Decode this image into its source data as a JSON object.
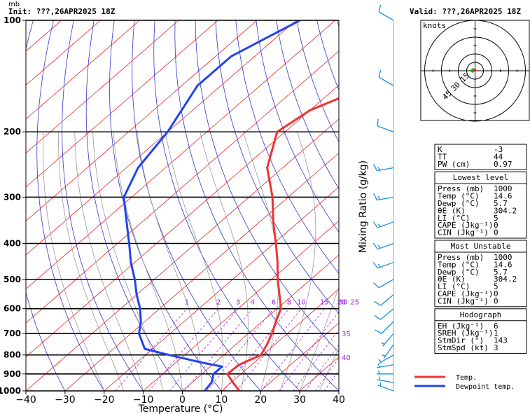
{
  "header": {
    "init": "Init: ???,26APR2025  18Z",
    "valid": "Valid: ???,26APR2025  18Z",
    "pressure_unit": "mb"
  },
  "colors": {
    "temp": "#ee3333",
    "dewpoint": "#2244ee",
    "isotherm": "#ee2222",
    "dry_adiabat": "#3333cc",
    "moist_adiabat": "#999999",
    "mixing_ratio": "#a020f0",
    "wind": "#1a8fe0",
    "hodograph_trace": "#22aa22"
  },
  "chart_data": {
    "type": "skew-t log-p",
    "xlabel": "Temperature (°C)",
    "ylabel_right": "Mixing Ratio (g/kg)",
    "x_ticks": [
      -40,
      -30,
      -20,
      -10,
      0,
      10,
      20,
      30,
      40
    ],
    "x_tick_labels": [
      "−40",
      "−30",
      "−20",
      "−10",
      "0",
      "10",
      "20",
      "30",
      "40"
    ],
    "pressure_levels": [
      1000,
      900,
      800,
      700,
      600,
      500,
      400,
      300,
      200,
      100
    ],
    "pressure_labels": [
      "1000",
      "900",
      "800",
      "700",
      "600",
      "500",
      "400",
      "300",
      "200",
      "100"
    ],
    "ylim_mb": [
      1000,
      100
    ],
    "xlim_c": [
      -40,
      40
    ],
    "mixing_ratio_lines": [
      1,
      2,
      3,
      4,
      6,
      8,
      10,
      15,
      20,
      25,
      30,
      35,
      40
    ],
    "mixing_ratio_labels": [
      "1",
      "2",
      "3",
      "4",
      "6",
      "8",
      "10",
      "15",
      "20",
      "25",
      "30",
      "35",
      "40"
    ],
    "series": [
      {
        "name": "Temp.",
        "points": [
          {
            "p": 1000,
            "t": 14.6
          },
          {
            "p": 950,
            "t": 10.5
          },
          {
            "p": 900,
            "t": 6.5
          },
          {
            "p": 850,
            "t": 6.8
          },
          {
            "p": 800,
            "t": 9.5
          },
          {
            "p": 750,
            "t": 8.0
          },
          {
            "p": 700,
            "t": 6.0
          },
          {
            "p": 650,
            "t": 3.5
          },
          {
            "p": 600,
            "t": 1.0
          },
          {
            "p": 550,
            "t": -3.5
          },
          {
            "p": 500,
            "t": -8.5
          },
          {
            "p": 450,
            "t": -13.5
          },
          {
            "p": 400,
            "t": -19.5
          },
          {
            "p": 350,
            "t": -26.5
          },
          {
            "p": 300,
            "t": -34.0
          },
          {
            "p": 250,
            "t": -44.0
          },
          {
            "p": 200,
            "t": -52.0
          },
          {
            "p": 175,
            "t": -50.0
          },
          {
            "p": 150,
            "t": -42.0
          },
          {
            "p": 125,
            "t": -40.0
          },
          {
            "p": 100,
            "t": -38.0
          }
        ]
      },
      {
        "name": "Dewpoint temp.",
        "points": [
          {
            "p": 1000,
            "t": 5.7
          },
          {
            "p": 950,
            "t": 5.0
          },
          {
            "p": 900,
            "t": 3.0
          },
          {
            "p": 860,
            "t": 3.0
          },
          {
            "p": 840,
            "t": -3.0
          },
          {
            "p": 800,
            "t": -14.0
          },
          {
            "p": 770,
            "t": -22.0
          },
          {
            "p": 700,
            "t": -28.0
          },
          {
            "p": 650,
            "t": -31.0
          },
          {
            "p": 600,
            "t": -35.0
          },
          {
            "p": 550,
            "t": -40.0
          },
          {
            "p": 500,
            "t": -45.0
          },
          {
            "p": 450,
            "t": -51.0
          },
          {
            "p": 400,
            "t": -57.0
          },
          {
            "p": 350,
            "t": -64.0
          },
          {
            "p": 300,
            "t": -72.0
          },
          {
            "p": 250,
            "t": -77.0
          },
          {
            "p": 200,
            "t": -80.0
          },
          {
            "p": 150,
            "t": -86.0
          },
          {
            "p": 125,
            "t": -86.0
          },
          {
            "p": 100,
            "t": -79.0
          }
        ]
      }
    ],
    "wind_barbs": [
      {
        "p": 100,
        "dir": 300,
        "spd": 10
      },
      {
        "p": 150,
        "dir": 300,
        "spd": 10
      },
      {
        "p": 200,
        "dir": 290,
        "spd": 10
      },
      {
        "p": 250,
        "dir": 260,
        "spd": 15
      },
      {
        "p": 300,
        "dir": 260,
        "spd": 15
      },
      {
        "p": 350,
        "dir": 250,
        "spd": 15
      },
      {
        "p": 400,
        "dir": 250,
        "spd": 15
      },
      {
        "p": 450,
        "dir": 250,
        "spd": 15
      },
      {
        "p": 500,
        "dir": 240,
        "spd": 10
      },
      {
        "p": 550,
        "dir": 230,
        "spd": 10
      },
      {
        "p": 600,
        "dir": 230,
        "spd": 10
      },
      {
        "p": 650,
        "dir": 225,
        "spd": 10
      },
      {
        "p": 700,
        "dir": 220,
        "spd": 5
      },
      {
        "p": 750,
        "dir": 215,
        "spd": 5
      },
      {
        "p": 800,
        "dir": 240,
        "spd": 5
      },
      {
        "p": 850,
        "dir": 260,
        "spd": 5
      },
      {
        "p": 900,
        "dir": 270,
        "spd": 5
      },
      {
        "p": 950,
        "dir": 280,
        "spd": 5
      },
      {
        "p": 1000,
        "dir": 290,
        "spd": 5
      }
    ],
    "hodograph": {
      "title": "knots",
      "ring_labels": [
        "15",
        "30",
        "45"
      ],
      "trace": [
        [
          0,
          0
        ],
        [
          -2,
          -1
        ],
        [
          -3,
          1
        ],
        [
          -1,
          2
        ]
      ]
    }
  },
  "indices": {
    "top": [
      {
        "label": "K",
        "value": "-3"
      },
      {
        "label": "TT",
        "value": "44"
      },
      {
        "label": "PW (cm)",
        "value": "0.97"
      }
    ],
    "lowest_level": {
      "title": "Lowest level",
      "rows": [
        {
          "label": "Press (mb)",
          "value": "1000"
        },
        {
          "label": "Temp (°C)",
          "value": "14.6"
        },
        {
          "label": "Dewp (°C)",
          "value": "5.7"
        },
        {
          "label": "θE (K)",
          "value": "304.2"
        },
        {
          "label": "LI (°C)",
          "value": "5"
        },
        {
          "label": "CAPE (Jkg⁻¹)",
          "value": "0"
        },
        {
          "label": "CIN (Jkg⁻¹)",
          "value": "0"
        }
      ]
    },
    "most_unstable": {
      "title": "Most Unstable",
      "rows": [
        {
          "label": "Press (mb)",
          "value": "1000"
        },
        {
          "label": "Temp (°C)",
          "value": "14.6"
        },
        {
          "label": "Dewp (°C)",
          "value": "5.7"
        },
        {
          "label": "θE (K)",
          "value": "304.2"
        },
        {
          "label": "LI (°C)",
          "value": "5"
        },
        {
          "label": "CAPE (Jkg⁻¹)",
          "value": "0"
        },
        {
          "label": "CIN (Jkg⁻¹)",
          "value": "0"
        }
      ]
    },
    "hodograph_params": {
      "title": "Hodograph",
      "rows": [
        {
          "label": "EH (Jkg⁻¹)",
          "value": "6"
        },
        {
          "label": "SREH (Jkg⁻¹)",
          "value": "1"
        },
        {
          "label": "StmDir (°)",
          "value": "143"
        },
        {
          "label": "StmSpd (kt)",
          "value": "3"
        }
      ]
    }
  },
  "legend": {
    "temp_label": "Temp.",
    "dewpoint_label": "Dewpoint temp."
  }
}
